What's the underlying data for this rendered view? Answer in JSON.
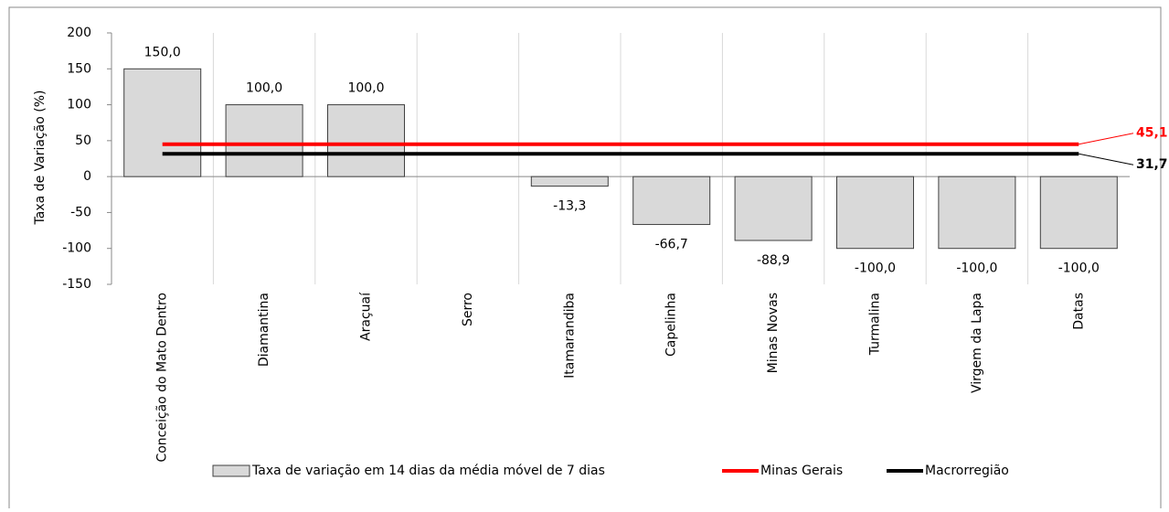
{
  "chart_data": {
    "type": "bar",
    "y_label": "Taxa de Variação (%)",
    "categories": [
      "Conceição do Mato Dentro",
      "Diamantina",
      "Araçuaí",
      "Serro",
      "Itamarandiba",
      "Capelinha",
      "Minas Novas",
      "Turmalina",
      "Virgem da Lapa",
      "Datas"
    ],
    "series": [
      {
        "name": "Taxa de variação em 14 dias da média móvel de 7 dias",
        "color": "#d9d9d9",
        "values": [
          150,
          100,
          100,
          null,
          -13.3,
          -66.7,
          -88.9,
          -100,
          -100,
          -100
        ],
        "value_labels": [
          "150,0",
          "100,0",
          "100,0",
          null,
          "-13,3",
          "-66,7",
          "-88,9",
          "-100,0",
          "-100,0",
          "-100,0"
        ]
      }
    ],
    "reference_lines": [
      {
        "name": "Minas Gerais",
        "color": "#ff0000",
        "value": 45.1,
        "value_label": "45,1"
      },
      {
        "name": "Macrorregião",
        "color": "#000000",
        "value": 31.7,
        "value_label": "31,7"
      }
    ],
    "ylim": [
      -150,
      200
    ],
    "yticks": [
      -150,
      -100,
      -50,
      0,
      50,
      100,
      150,
      200
    ],
    "grid": true
  }
}
